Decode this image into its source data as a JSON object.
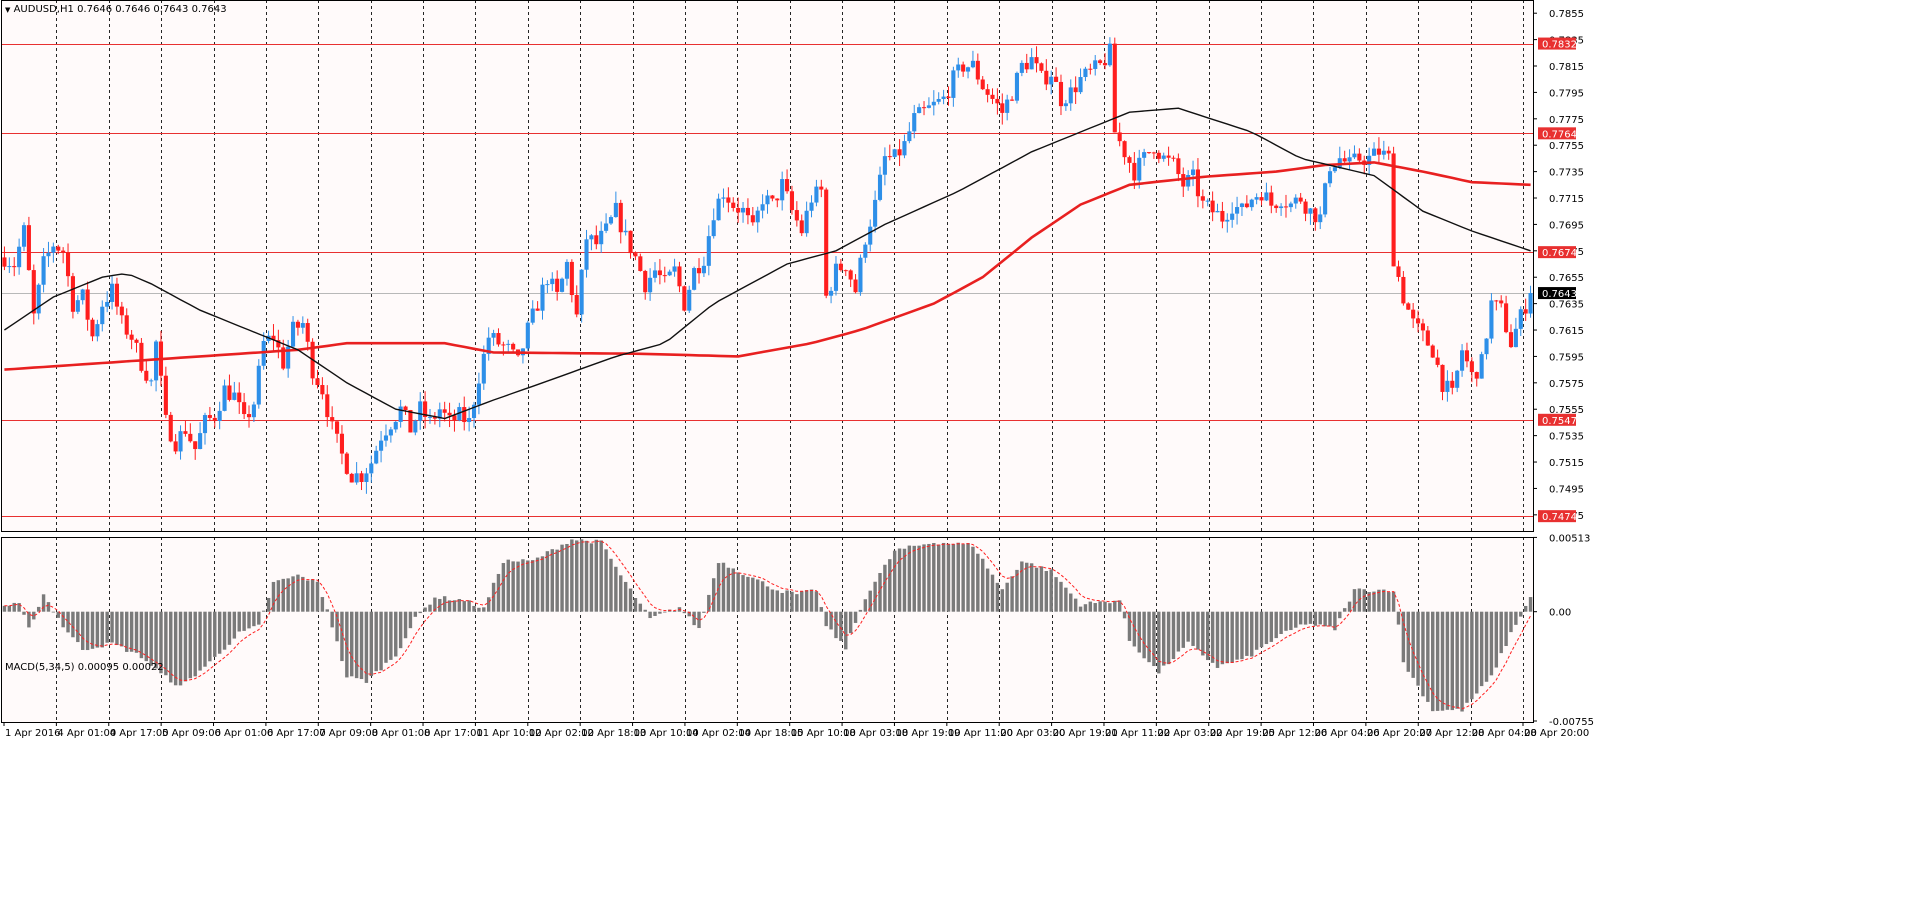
{
  "header": {
    "symbol": "AUDUSD,H1",
    "ohlc": "0.7646 0.7646 0.7643 0.7643"
  },
  "macd_header": {
    "label": "MACD(5,34,5)",
    "values": "0.00095 0.00022"
  },
  "colors": {
    "background": "#fffafa",
    "bull": "#2e8fe8",
    "bear": "#ff1e1e",
    "ma_red": "#e82020",
    "ma_black": "#111111",
    "level_line": "#e83030",
    "grid": "#000000",
    "histogram": "#7a7a7a",
    "signal": "#ff2020"
  },
  "chart_data": [
    {
      "type": "candlestick",
      "symbol": "AUDUSD",
      "timeframe": "H1",
      "ylim": [
        0.7462,
        0.7865
      ],
      "y_ticks": [
        "0.7855",
        "0.7835",
        "0.7815",
        "0.7795",
        "0.7775",
        "0.7755",
        "0.7735",
        "0.7715",
        "0.7695",
        "0.7675",
        "0.7655",
        "0.7635",
        "0.7615",
        "0.7595",
        "0.7575",
        "0.7555",
        "0.7535",
        "0.7515",
        "0.7495",
        "0.7475"
      ],
      "current_price": "0.7643",
      "levels": [
        "0.7832",
        "0.7764",
        "0.7674",
        "0.7547",
        "0.7474"
      ],
      "x_ticks": [
        "1 Apr 2016",
        "4 Apr 01:00",
        "4 Apr 17:00",
        "5 Apr 09:00",
        "6 Apr 01:00",
        "6 Apr 17:00",
        "7 Apr 09:00",
        "8 Apr 01:00",
        "8 Apr 17:00",
        "11 Apr 10:00",
        "12 Apr 02:00",
        "12 Apr 18:00",
        "13 Apr 10:00",
        "14 Apr 02:00",
        "14 Apr 18:00",
        "15 Apr 10:00",
        "18 Apr 03:00",
        "18 Apr 19:00",
        "19 Apr 11:00",
        "20 Apr 03:00",
        "20 Apr 19:00",
        "21 Apr 11:00",
        "22 Apr 03:00",
        "22 Apr 19:00",
        "25 Apr 12:00",
        "26 Apr 04:00",
        "26 Apr 20:00",
        "27 Apr 12:00",
        "28 Apr 04:00",
        "28 Apr 20:00"
      ],
      "close_path": [
        [
          0,
          0.767
        ],
        [
          2,
          0.7665
        ],
        [
          4,
          0.769
        ],
        [
          6,
          0.7625
        ],
        [
          8,
          0.7665
        ],
        [
          10,
          0.768
        ],
        [
          12,
          0.7675
        ],
        [
          14,
          0.7635
        ],
        [
          16,
          0.764
        ],
        [
          18,
          0.761
        ],
        [
          20,
          0.7635
        ],
        [
          22,
          0.7645
        ],
        [
          24,
          0.762
        ],
        [
          26,
          0.761
        ],
        [
          28,
          0.759
        ],
        [
          30,
          0.7575
        ],
        [
          31,
          0.7605
        ],
        [
          33,
          0.7545
        ],
        [
          35,
          0.753
        ],
        [
          37,
          0.754
        ],
        [
          39,
          0.7525
        ],
        [
          41,
          0.7545
        ],
        [
          43,
          0.755
        ],
        [
          45,
          0.757
        ],
        [
          47,
          0.7565
        ],
        [
          49,
          0.7545
        ],
        [
          51,
          0.756
        ],
        [
          53,
          0.7605
        ],
        [
          55,
          0.761
        ],
        [
          57,
          0.759
        ],
        [
          59,
          0.7615
        ],
        [
          61,
          0.762
        ],
        [
          63,
          0.7585
        ],
        [
          65,
          0.757
        ],
        [
          67,
          0.754
        ],
        [
          69,
          0.752
        ],
        [
          71,
          0.7505
        ],
        [
          73,
          0.7505
        ],
        [
          75,
          0.7515
        ],
        [
          77,
          0.7535
        ],
        [
          79,
          0.7545
        ],
        [
          81,
          0.7555
        ],
        [
          83,
          0.754
        ],
        [
          85,
          0.7555
        ],
        [
          87,
          0.7545
        ],
        [
          89,
          0.7555
        ],
        [
          91,
          0.7545
        ],
        [
          93,
          0.755
        ],
        [
          95,
          0.7545
        ],
        [
          97,
          0.758
        ],
        [
          99,
          0.761
        ],
        [
          101,
          0.7605
        ],
        [
          103,
          0.76
        ],
        [
          105,
          0.759
        ],
        [
          107,
          0.7615
        ],
        [
          109,
          0.7635
        ],
        [
          111,
          0.7655
        ],
        [
          113,
          0.764
        ],
        [
          115,
          0.7665
        ],
        [
          117,
          0.7625
        ],
        [
          119,
          0.7685
        ],
        [
          121,
          0.768
        ],
        [
          123,
          0.769
        ],
        [
          125,
          0.7705
        ],
        [
          127,
          0.7685
        ],
        [
          129,
          0.767
        ],
        [
          131,
          0.765
        ],
        [
          133,
          0.766
        ],
        [
          135,
          0.765
        ],
        [
          137,
          0.766
        ],
        [
          139,
          0.7635
        ],
        [
          141,
          0.766
        ],
        [
          143,
          0.767
        ],
        [
          145,
          0.7705
        ],
        [
          147,
          0.772
        ],
        [
          149,
          0.771
        ],
        [
          151,
          0.7705
        ],
        [
          153,
          0.769
        ],
        [
          155,
          0.7715
        ],
        [
          157,
          0.771
        ],
        [
          159,
          0.7725
        ],
        [
          161,
          0.7705
        ],
        [
          163,
          0.769
        ],
        [
          165,
          0.7715
        ],
        [
          167,
          0.772
        ],
        [
          168,
          0.764
        ],
        [
          170,
          0.766
        ],
        [
          172,
          0.7665
        ],
        [
          174,
          0.7645
        ],
        [
          176,
          0.7685
        ],
        [
          178,
          0.771
        ],
        [
          180,
          0.7745
        ],
        [
          182,
          0.7745
        ],
        [
          184,
          0.7755
        ],
        [
          186,
          0.7775
        ],
        [
          188,
          0.778
        ],
        [
          190,
          0.7785
        ],
        [
          192,
          0.779
        ],
        [
          194,
          0.7805
        ],
        [
          196,
          0.7815
        ],
        [
          198,
          0.7815
        ],
        [
          200,
          0.78
        ],
        [
          202,
          0.779
        ],
        [
          204,
          0.778
        ],
        [
          206,
          0.7795
        ],
        [
          208,
          0.7815
        ],
        [
          210,
          0.782
        ],
        [
          212,
          0.7805
        ],
        [
          214,
          0.781
        ],
        [
          216,
          0.779
        ],
        [
          218,
          0.7795
        ],
        [
          220,
          0.7805
        ],
        [
          222,
          0.781
        ],
        [
          224,
          0.7815
        ],
        [
          226,
          0.7825
        ],
        [
          227,
          0.7765
        ],
        [
          229,
          0.775
        ],
        [
          231,
          0.7735
        ],
        [
          233,
          0.7745
        ],
        [
          235,
          0.7755
        ],
        [
          237,
          0.7745
        ],
        [
          239,
          0.774
        ],
        [
          241,
          0.7725
        ],
        [
          243,
          0.773
        ],
        [
          245,
          0.771
        ],
        [
          247,
          0.7705
        ],
        [
          249,
          0.77
        ],
        [
          251,
          0.771
        ],
        [
          253,
          0.7705
        ],
        [
          255,
          0.7715
        ],
        [
          257,
          0.772
        ],
        [
          259,
          0.771
        ],
        [
          261,
          0.7715
        ],
        [
          263,
          0.771
        ],
        [
          265,
          0.7715
        ],
        [
          267,
          0.7705
        ],
        [
          269,
          0.77
        ],
        [
          271,
          0.774
        ],
        [
          273,
          0.7745
        ],
        [
          275,
          0.774
        ],
        [
          277,
          0.7745
        ],
        [
          279,
          0.7745
        ],
        [
          281,
          0.775
        ],
        [
          283,
          0.7745
        ],
        [
          284,
          0.767
        ],
        [
          286,
          0.764
        ],
        [
          288,
          0.762
        ],
        [
          290,
          0.761
        ],
        [
          292,
          0.76
        ],
        [
          294,
          0.7575
        ],
        [
          296,
          0.7565
        ],
        [
          298,
          0.76
        ],
        [
          300,
          0.758
        ],
        [
          302,
          0.759
        ],
        [
          304,
          0.7635
        ],
        [
          306,
          0.763
        ],
        [
          308,
          0.7605
        ],
        [
          310,
          0.7625
        ],
        [
          312,
          0.7643
        ]
      ],
      "ma_slow_path": [
        [
          0,
          0.7585
        ],
        [
          20,
          0.759
        ],
        [
          40,
          0.7595
        ],
        [
          60,
          0.76
        ],
        [
          70,
          0.7605
        ],
        [
          90,
          0.7605
        ],
        [
          100,
          0.7598
        ],
        [
          130,
          0.7597
        ],
        [
          150,
          0.7595
        ],
        [
          165,
          0.7605
        ],
        [
          175,
          0.7615
        ],
        [
          190,
          0.7635
        ],
        [
          200,
          0.7655
        ],
        [
          210,
          0.7685
        ],
        [
          220,
          0.771
        ],
        [
          230,
          0.7725
        ],
        [
          245,
          0.7731
        ],
        [
          260,
          0.7735
        ],
        [
          270,
          0.774
        ],
        [
          280,
          0.7742
        ],
        [
          290,
          0.7735
        ],
        [
          300,
          0.7727
        ],
        [
          312,
          0.7725
        ]
      ],
      "ma_fast_path": [
        [
          0,
          0.7615
        ],
        [
          10,
          0.764
        ],
        [
          20,
          0.7655
        ],
        [
          25,
          0.7658
        ],
        [
          30,
          0.765
        ],
        [
          40,
          0.763
        ],
        [
          50,
          0.7615
        ],
        [
          60,
          0.76
        ],
        [
          70,
          0.7575
        ],
        [
          80,
          0.7555
        ],
        [
          90,
          0.7548
        ],
        [
          100,
          0.7562
        ],
        [
          110,
          0.7575
        ],
        [
          125,
          0.7595
        ],
        [
          135,
          0.7605
        ],
        [
          145,
          0.7635
        ],
        [
          160,
          0.7665
        ],
        [
          170,
          0.7675
        ],
        [
          180,
          0.7695
        ],
        [
          195,
          0.772
        ],
        [
          210,
          0.775
        ],
        [
          220,
          0.7765
        ],
        [
          230,
          0.778
        ],
        [
          240,
          0.7783
        ],
        [
          255,
          0.7765
        ],
        [
          265,
          0.7745
        ],
        [
          280,
          0.7732
        ],
        [
          290,
          0.7705
        ],
        [
          300,
          0.769
        ],
        [
          312,
          0.7675
        ]
      ]
    },
    {
      "type": "bar",
      "indicator": "MACD(5,34,5)",
      "ylim": [
        -0.00762,
        0.00516
      ],
      "y_ticks": [
        "0.00513",
        "0.00",
        "-0.00755"
      ],
      "macd_path": [
        [
          0,
          0.0004
        ],
        [
          3,
          0.0005
        ],
        [
          5,
          -0.0012
        ],
        [
          8,
          0.0012
        ],
        [
          12,
          -0.001
        ],
        [
          16,
          -0.0026
        ],
        [
          22,
          -0.0022
        ],
        [
          28,
          -0.0031
        ],
        [
          32,
          -0.0043
        ],
        [
          36,
          -0.0052
        ],
        [
          42,
          -0.0035
        ],
        [
          48,
          -0.0015
        ],
        [
          52,
          -0.001
        ],
        [
          55,
          0.002
        ],
        [
          60,
          0.0025
        ],
        [
          64,
          0.002
        ],
        [
          66,
          0.0002
        ],
        [
          70,
          -0.0045
        ],
        [
          74,
          -0.0048
        ],
        [
          80,
          -0.003
        ],
        [
          84,
          -0.0005
        ],
        [
          88,
          0.001
        ],
        [
          94,
          0.0008
        ],
        [
          98,
          0.0002
        ],
        [
          102,
          0.0035
        ],
        [
          108,
          0.0035
        ],
        [
          116,
          0.005
        ],
        [
          122,
          0.0048
        ],
        [
          126,
          0.0025
        ],
        [
          132,
          -0.0005
        ],
        [
          138,
          0.0003
        ],
        [
          142,
          -0.0012
        ],
        [
          146,
          0.0035
        ],
        [
          152,
          0.0025
        ],
        [
          158,
          0.0015
        ],
        [
          162,
          0.0012
        ],
        [
          166,
          0.0015
        ],
        [
          168,
          -0.001
        ],
        [
          172,
          -0.0025
        ],
        [
          176,
          0.001
        ],
        [
          182,
          0.0042
        ],
        [
          190,
          0.0048
        ],
        [
          198,
          0.0046
        ],
        [
          204,
          0.0015
        ],
        [
          208,
          0.0035
        ],
        [
          214,
          0.0028
        ],
        [
          220,
          0.0005
        ],
        [
          228,
          0.0008
        ],
        [
          230,
          -0.002
        ],
        [
          236,
          -0.0042
        ],
        [
          242,
          -0.0022
        ],
        [
          248,
          -0.0038
        ],
        [
          254,
          -0.0032
        ],
        [
          260,
          -0.0018
        ],
        [
          266,
          -0.0008
        ],
        [
          272,
          -0.0012
        ],
        [
          276,
          0.0015
        ],
        [
          284,
          0.0015
        ],
        [
          286,
          -0.0035
        ],
        [
          292,
          -0.0068
        ],
        [
          298,
          -0.0068
        ],
        [
          304,
          -0.0045
        ],
        [
          308,
          -0.0015
        ],
        [
          312,
          0.001
        ]
      ]
    }
  ]
}
